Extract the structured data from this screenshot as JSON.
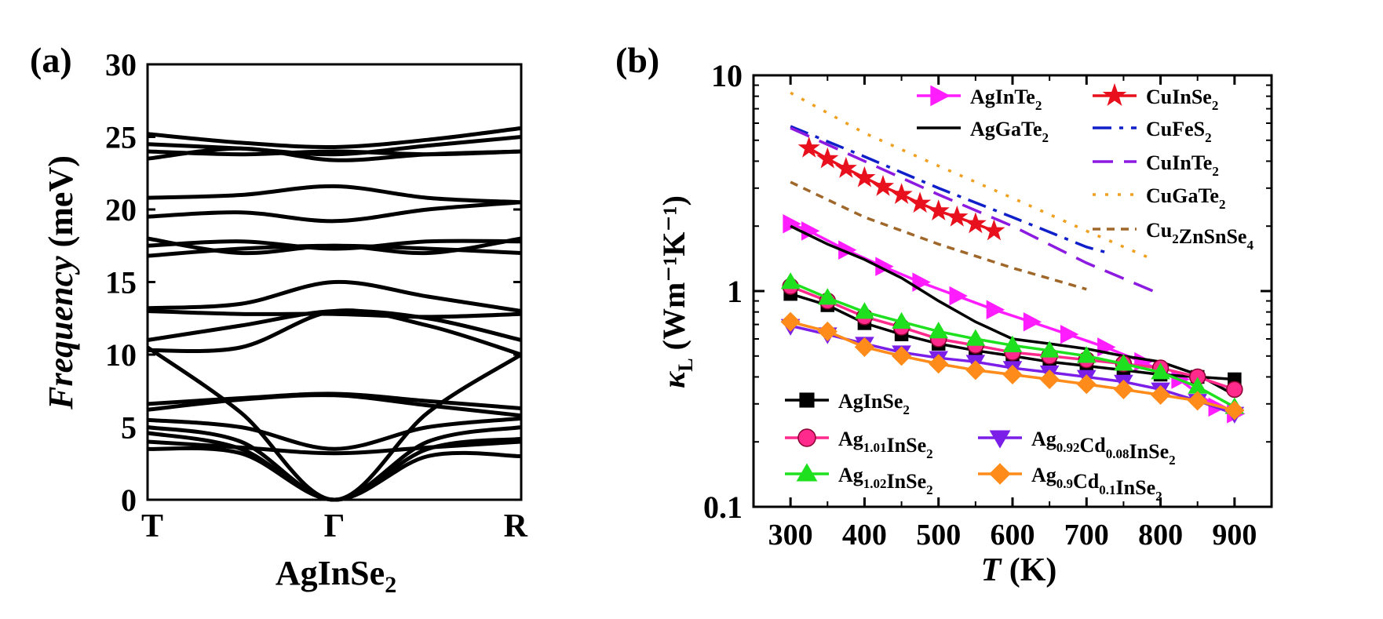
{
  "chart_data": [
    {
      "panel_label": "(a)",
      "type": "line",
      "title": "",
      "ylabel_italic": "Frequency",
      "ylabel_unit": "(meV)",
      "xlabel_main": "AgInSe",
      "xlabel_sub": "2",
      "ylim": [
        0,
        30
      ],
      "yticks": [
        "0",
        "5",
        "10",
        "15",
        "20",
        "25",
        "30"
      ],
      "xticks": [
        "T",
        "Γ",
        "R"
      ],
      "series": [
        {
          "values": [
            4.0,
            3.6,
            3.2,
            3.6,
            4.0
          ]
        },
        {
          "values": [
            3.5,
            3.2,
            0.0,
            3.0,
            3.0
          ]
        },
        {
          "values": [
            4.6,
            3.5,
            0.0,
            3.5,
            4.2
          ]
        },
        {
          "values": [
            5.0,
            4.0,
            0.0,
            4.0,
            5.0
          ]
        },
        {
          "values": [
            5.5,
            5.0,
            3.5,
            5.0,
            5.6
          ]
        },
        {
          "values": [
            6.2,
            6.9,
            7.2,
            6.5,
            5.8
          ]
        },
        {
          "values": [
            6.6,
            7.0,
            7.3,
            6.8,
            6.3
          ]
        },
        {
          "values": [
            10.3,
            10.5,
            13.0,
            12.0,
            10.0
          ]
        },
        {
          "values": [
            11.0,
            12.0,
            13.0,
            12.5,
            11.0
          ]
        },
        {
          "values": [
            10.5,
            6.0,
            0.0,
            6.0,
            10.0
          ]
        },
        {
          "values": [
            13.0,
            12.8,
            12.8,
            12.6,
            12.8
          ]
        },
        {
          "values": [
            13.2,
            13.5,
            15.0,
            14.0,
            13.0
          ]
        },
        {
          "values": [
            16.8,
            17.3,
            17.5,
            17.3,
            17.0
          ]
        },
        {
          "values": [
            17.5,
            17.8,
            17.3,
            17.8,
            17.8
          ]
        },
        {
          "values": [
            18.0,
            17.0,
            17.5,
            17.0,
            18.0
          ]
        },
        {
          "values": [
            19.5,
            19.8,
            19.2,
            20.0,
            20.5
          ]
        },
        {
          "values": [
            20.8,
            21.0,
            21.6,
            20.8,
            20.5
          ]
        },
        {
          "values": [
            23.5,
            24.2,
            23.4,
            23.8,
            24.0
          ]
        },
        {
          "values": [
            24.0,
            23.8,
            24.0,
            23.8,
            24.0
          ]
        },
        {
          "values": [
            24.5,
            24.2,
            23.8,
            24.4,
            25.0
          ]
        },
        {
          "values": [
            25.2,
            24.6,
            24.3,
            24.8,
            25.6
          ]
        }
      ]
    },
    {
      "panel_label": "(b)",
      "type": "line",
      "title": "",
      "scale_y": "log",
      "ylabel_symbol": "κ",
      "ylabel_sub": "L",
      "ylabel_unit": "(Wm⁻¹K⁻¹)",
      "xlabel_italic": "T",
      "xlabel_unit": "(K)",
      "xlim": [
        250,
        950
      ],
      "ylim": [
        0.1,
        10
      ],
      "xticks": [
        "300",
        "400",
        "500",
        "600",
        "700",
        "800",
        "900"
      ],
      "yticks": [
        "0.1",
        "1",
        "10"
      ],
      "legend_placement": "top-right and bottom-left",
      "series": [
        {
          "name_main": "AgInTe",
          "name_sub": "2",
          "color": "#ff1cff",
          "marker": "triangle-right",
          "dash": "solid",
          "x": [
            300,
            325,
            375,
            425,
            475,
            525,
            575,
            625,
            675,
            725,
            775,
            825,
            875,
            900
          ],
          "y": [
            2.05,
            1.9,
            1.55,
            1.3,
            1.1,
            0.95,
            0.82,
            0.72,
            0.63,
            0.55,
            0.47,
            0.39,
            0.29,
            0.27
          ]
        },
        {
          "name_main": "AgGaTe",
          "name_sub": "2",
          "color": "#000000",
          "marker": "none",
          "dash": "solid",
          "x": [
            300,
            350,
            400,
            450,
            500,
            550,
            600,
            650,
            700,
            750,
            800,
            850,
            900
          ],
          "y": [
            2.0,
            1.65,
            1.4,
            1.15,
            0.9,
            0.72,
            0.6,
            0.57,
            0.54,
            0.5,
            0.47,
            0.41,
            0.33
          ]
        },
        {
          "name_main": "CuInSe",
          "name_sub": "2",
          "color": "#e8101c",
          "marker": "star",
          "dash": "solid",
          "x": [
            325,
            350,
            375,
            400,
            425,
            450,
            475,
            500,
            525,
            550,
            575
          ],
          "y": [
            4.6,
            4.1,
            3.7,
            3.35,
            3.05,
            2.8,
            2.55,
            2.35,
            2.2,
            2.05,
            1.9
          ]
        },
        {
          "name_main": "CuFeS",
          "name_sub": "2",
          "color": "#1020c8",
          "marker": "none",
          "dash": "dashdot",
          "x": [
            300,
            400,
            500,
            600,
            700,
            730
          ],
          "y": [
            5.8,
            4.2,
            3.0,
            2.2,
            1.6,
            1.5
          ]
        },
        {
          "name_main": "CuInTe",
          "name_sub": "2",
          "color": "#8c1ae0",
          "marker": "none",
          "dash": "dash",
          "x": [
            300,
            400,
            500,
            600,
            700,
            790
          ],
          "y": [
            5.7,
            4.0,
            2.8,
            2.0,
            1.35,
            1.0
          ]
        },
        {
          "name_main": "CuGaTe",
          "name_sub": "2",
          "color": "#f0a020",
          "marker": "none",
          "dash": "dot",
          "x": [
            300,
            400,
            500,
            600,
            700,
            790
          ],
          "y": [
            8.3,
            5.4,
            3.8,
            2.7,
            1.9,
            1.4
          ]
        },
        {
          "name_main": "Cu",
          "name_sub": "2",
          "name_main2": "ZnSnSe",
          "name_sub2": "4",
          "color": "#a0672a",
          "marker": "none",
          "dash": "shortdash",
          "x": [
            300,
            400,
            500,
            600,
            700
          ],
          "y": [
            3.2,
            2.2,
            1.65,
            1.28,
            1.02
          ]
        },
        {
          "name_main": "AgInSe",
          "name_sub": "2",
          "color": "#000000",
          "marker": "square",
          "dash": "solid",
          "x": [
            300,
            350,
            400,
            450,
            500,
            550,
            600,
            650,
            700,
            750,
            800,
            850,
            900
          ],
          "y": [
            0.97,
            0.86,
            0.71,
            0.63,
            0.57,
            0.53,
            0.5,
            0.47,
            0.45,
            0.43,
            0.41,
            0.4,
            0.39
          ]
        },
        {
          "name_main": "Ag",
          "name_sub": "1.01",
          "name_main2": "InSe",
          "name_sub2": "2",
          "color": "#ff2a8c",
          "marker": "circle",
          "dash": "solid",
          "x": [
            300,
            350,
            400,
            450,
            500,
            550,
            600,
            650,
            700,
            750,
            800,
            850,
            900
          ],
          "y": [
            1.05,
            0.9,
            0.76,
            0.68,
            0.6,
            0.56,
            0.52,
            0.5,
            0.48,
            0.46,
            0.44,
            0.4,
            0.35
          ]
        },
        {
          "name_main": "Ag",
          "name_sub": "1.02",
          "name_main2": "InSe",
          "name_sub2": "2",
          "color": "#1fe01f",
          "marker": "triangle-up",
          "dash": "solid",
          "x": [
            300,
            350,
            400,
            450,
            500,
            550,
            600,
            650,
            700,
            750,
            800,
            850,
            900
          ],
          "y": [
            1.1,
            0.93,
            0.8,
            0.72,
            0.65,
            0.6,
            0.56,
            0.53,
            0.5,
            0.46,
            0.42,
            0.36,
            0.29
          ]
        },
        {
          "name_main": "Ag",
          "name_sub": "0.92",
          "name_main2": "Cd",
          "name_sub2": "0.08",
          "name_main3": "InSe",
          "name_sub3": "2",
          "color": "#7a1ee8",
          "marker": "triangle-down",
          "dash": "solid",
          "x": [
            300,
            350,
            400,
            450,
            500,
            550,
            600,
            650,
            700,
            750,
            800,
            850,
            900
          ],
          "y": [
            0.69,
            0.63,
            0.57,
            0.52,
            0.49,
            0.47,
            0.44,
            0.42,
            0.4,
            0.38,
            0.35,
            0.31,
            0.27
          ]
        },
        {
          "name_main": "Ag",
          "name_sub": "0.9",
          "name_main2": "Cd",
          "name_sub2": "0.1",
          "name_main3": "InSe",
          "name_sub3": "2",
          "color": "#ff8c1a",
          "marker": "diamond",
          "dash": "solid",
          "x": [
            300,
            350,
            400,
            450,
            500,
            550,
            600,
            650,
            700,
            750,
            800,
            850,
            900
          ],
          "y": [
            0.72,
            0.65,
            0.55,
            0.5,
            0.46,
            0.43,
            0.41,
            0.39,
            0.37,
            0.35,
            0.33,
            0.31,
            0.28
          ]
        }
      ]
    }
  ]
}
